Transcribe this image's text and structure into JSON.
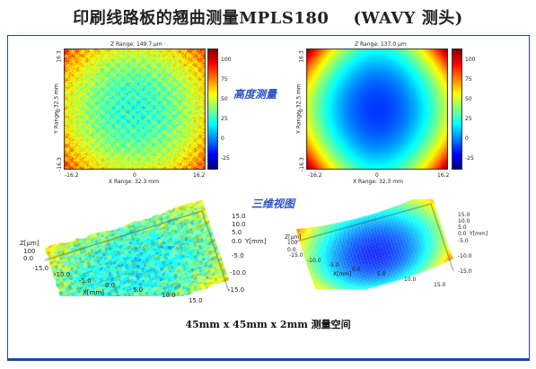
{
  "slide": {
    "title": "印刷线路板的翘曲测量MPLS180    (WAVY 测头)",
    "section_height": "高度测量",
    "section_3d": "三维视图",
    "caption": "45mm x 45mm x 2mm 测量空间"
  },
  "colors": {
    "frame": "#1e45a6",
    "section_label": "#2a4fc8"
  },
  "chart_data": [
    {
      "type": "heatmap",
      "title": "Z Range: 149.7 µm",
      "xlabel": "X Range: 32.3 mm",
      "ylabel": "Y Range: 32.5 mm",
      "x_ticks": [
        "-16.2",
        "0",
        "16.2"
      ],
      "y_ticks": [
        "16.3",
        "0",
        "-16.3"
      ],
      "colorbar_ticks": [
        "100",
        "75",
        "50",
        "25",
        "0",
        "-25"
      ],
      "xlim": [
        -16.2,
        16.2
      ],
      "ylim": [
        -16.3,
        16.3
      ]
    },
    {
      "type": "heatmap",
      "title": "Z Range: 137.0 µm",
      "xlabel": "X Range: 32.3 mm",
      "ylabel": "Y Range: 32.5 mm",
      "x_ticks": [
        "-16.2",
        "0",
        "16.2"
      ],
      "y_ticks": [
        "16.3",
        "0",
        "-16.3"
      ],
      "colorbar_ticks": [
        "100",
        "75",
        "50",
        "25",
        "0",
        "-25"
      ],
      "xlim": [
        -16.2,
        16.2
      ],
      "ylim": [
        -16.3,
        16.3
      ]
    },
    {
      "type": "surface",
      "x_label": "X[mm]",
      "y_label": "Y[mm]",
      "z_label": "Z[µm]",
      "z_ticks": [
        "100",
        "0.0"
      ],
      "x_ticks": [
        "-15.0",
        "-10.0",
        "-5.0",
        "0.0",
        "5.0",
        "10.0",
        "15.0"
      ],
      "y_ticks": [
        "15.0",
        "10.0",
        "5.0",
        "0.0",
        "-5.0",
        "-10.0",
        "-15.0"
      ]
    },
    {
      "type": "surface",
      "x_label": "X[mm]",
      "y_label": "Y[mm]",
      "z_label": "Z[µm]",
      "z_ticks": [
        "100",
        "0.0"
      ],
      "x_ticks": [
        "-15.0",
        "-10.0",
        "-5.0",
        "0.0",
        "5.0",
        "10.0",
        "15.0"
      ],
      "y_ticks": [
        "15.0",
        "10.0",
        "5.0",
        "0.0",
        "-5.0",
        "-10.0",
        "-15.0"
      ]
    }
  ]
}
